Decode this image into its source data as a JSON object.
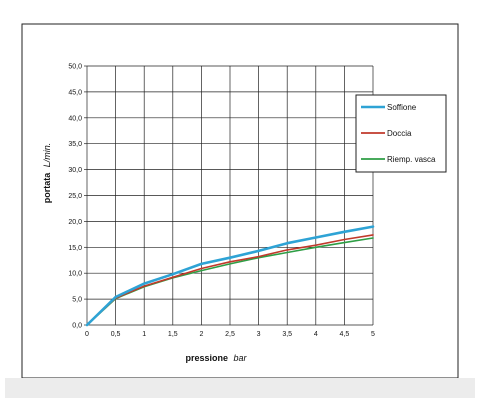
{
  "chart_data": {
    "type": "line",
    "xlabel_main": "pressione",
    "xlabel_unit": "bar",
    "ylabel_main": "portata",
    "ylabel_unit": "L/min.",
    "xlim": [
      0,
      5
    ],
    "ylim": [
      0,
      50
    ],
    "x_ticks": [
      "0",
      "0,5",
      "1",
      "1,5",
      "2",
      "2,5",
      "3",
      "3,5",
      "4",
      "4,5",
      "5"
    ],
    "y_ticks": [
      "0,0",
      "5,0",
      "10,0",
      "15,0",
      "20,0",
      "25,0",
      "30,0",
      "35,0",
      "40,0",
      "45,0",
      "50,0"
    ],
    "grid": true,
    "legend_position": "right",
    "series": [
      {
        "name": "Soffione",
        "color": "#2ea3d5",
        "x": [
          0,
          0.5,
          1,
          1.5,
          2,
          2.5,
          3,
          3.5,
          4,
          4.5,
          5
        ],
        "y": [
          0,
          5.4,
          8.0,
          9.8,
          11.8,
          13.0,
          14.3,
          15.8,
          16.9,
          18.0,
          19.0
        ]
      },
      {
        "name": "Doccia",
        "color": "#c0392b",
        "x": [
          0,
          0.5,
          1,
          1.5,
          2,
          2.5,
          3,
          3.5,
          4,
          4.5,
          5
        ],
        "y": [
          0,
          5.2,
          7.5,
          9.2,
          10.9,
          12.2,
          13.2,
          14.5,
          15.4,
          16.5,
          17.4
        ]
      },
      {
        "name": "Riemp. vasca",
        "color": "#2e9e45",
        "x": [
          0,
          0.5,
          1,
          1.5,
          2,
          2.5,
          3,
          3.5,
          4,
          4.5,
          5
        ],
        "y": [
          0,
          5.1,
          7.4,
          9.1,
          10.5,
          11.8,
          13.0,
          14.0,
          15.0,
          15.9,
          16.8
        ]
      }
    ]
  }
}
